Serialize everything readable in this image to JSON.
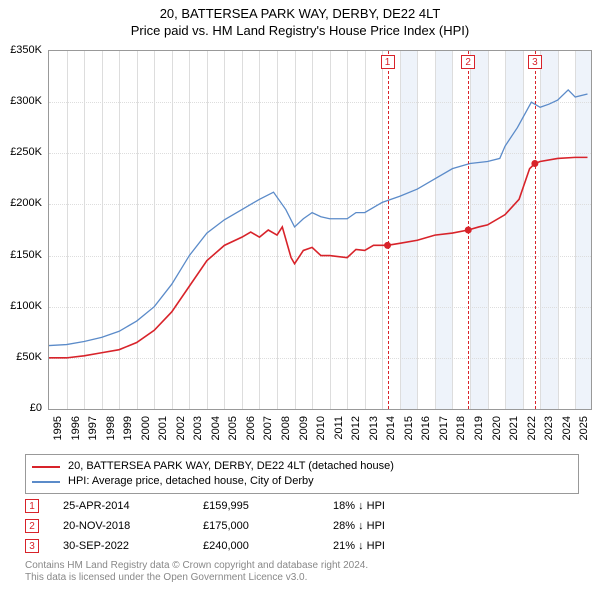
{
  "title": {
    "line1": "20, BATTERSEA PARK WAY, DERBY, DE22 4LT",
    "line2": "Price paid vs. HM Land Registry's House Price Index (HPI)",
    "fontsize": 13,
    "color": "#000000"
  },
  "chart": {
    "type": "line",
    "background_color": "#ffffff",
    "border_color": "#999999",
    "grid_color": "#dddddd",
    "x": {
      "years": [
        1995,
        1996,
        1997,
        1998,
        1999,
        2000,
        2001,
        2002,
        2003,
        2004,
        2005,
        2006,
        2007,
        2008,
        2009,
        2010,
        2011,
        2012,
        2013,
        2014,
        2015,
        2016,
        2017,
        2018,
        2019,
        2020,
        2021,
        2022,
        2023,
        2024,
        2025
      ],
      "min": 1995,
      "max": 2025.9
    },
    "y": {
      "ticks": [
        0,
        50,
        100,
        150,
        200,
        250,
        300,
        350
      ],
      "tick_labels": [
        "£0",
        "£50K",
        "£100K",
        "£150K",
        "£200K",
        "£250K",
        "£300K",
        "£350K"
      ],
      "min": 0,
      "max": 350
    },
    "shade_bands": [
      {
        "from": 2015,
        "to": 2016,
        "color": "#eef3fa"
      },
      {
        "from": 2017,
        "to": 2018,
        "color": "#eef3fa"
      },
      {
        "from": 2019,
        "to": 2020,
        "color": "#eef3fa"
      },
      {
        "from": 2021,
        "to": 2022,
        "color": "#eef3fa"
      },
      {
        "from": 2023,
        "to": 2024,
        "color": "#eef3fa"
      },
      {
        "from": 2025,
        "to": 2025.9,
        "color": "#eef3fa"
      }
    ],
    "series": [
      {
        "id": "price_paid",
        "color": "#d8232a",
        "line_width": 1.6,
        "marker_radius": 3.5,
        "points": [
          [
            1995,
            50
          ],
          [
            1996,
            50
          ],
          [
            1997,
            52
          ],
          [
            1998,
            55
          ],
          [
            1999,
            58
          ],
          [
            2000,
            65
          ],
          [
            2001,
            77
          ],
          [
            2002,
            95
          ],
          [
            2003,
            120
          ],
          [
            2004,
            145
          ],
          [
            2005,
            160
          ],
          [
            2006,
            168
          ],
          [
            2006.5,
            173
          ],
          [
            2007,
            168
          ],
          [
            2007.5,
            175
          ],
          [
            2008,
            170
          ],
          [
            2008.3,
            178
          ],
          [
            2008.8,
            148
          ],
          [
            2009,
            142
          ],
          [
            2009.5,
            155
          ],
          [
            2010,
            158
          ],
          [
            2010.5,
            150
          ],
          [
            2011,
            150
          ],
          [
            2012,
            148
          ],
          [
            2012.5,
            156
          ],
          [
            2013,
            155
          ],
          [
            2013.5,
            160
          ],
          [
            2014.3,
            160
          ]
        ],
        "points2": [
          [
            2014.3,
            160
          ],
          [
            2015,
            162
          ],
          [
            2016,
            165
          ],
          [
            2017,
            170
          ],
          [
            2018,
            172
          ],
          [
            2018.9,
            175
          ]
        ],
        "points3": [
          [
            2018.9,
            175
          ],
          [
            2019.5,
            178
          ],
          [
            2020,
            180
          ],
          [
            2021,
            190
          ],
          [
            2021.8,
            205
          ],
          [
            2022.4,
            235
          ],
          [
            2022.7,
            240
          ]
        ],
        "points4": [
          [
            2022.7,
            240
          ],
          [
            2023,
            242
          ],
          [
            2024,
            245
          ],
          [
            2025,
            246
          ],
          [
            2025.7,
            246
          ]
        ],
        "sale_markers": [
          {
            "x": 2014.3,
            "y": 160
          },
          {
            "x": 2018.9,
            "y": 175
          },
          {
            "x": 2022.7,
            "y": 240
          }
        ]
      },
      {
        "id": "hpi",
        "color": "#5b8bc9",
        "line_width": 1.3,
        "points": [
          [
            1995,
            62
          ],
          [
            1996,
            63
          ],
          [
            1997,
            66
          ],
          [
            1998,
            70
          ],
          [
            1999,
            76
          ],
          [
            2000,
            86
          ],
          [
            2001,
            100
          ],
          [
            2002,
            122
          ],
          [
            2003,
            150
          ],
          [
            2004,
            172
          ],
          [
            2005,
            185
          ],
          [
            2006,
            195
          ],
          [
            2007,
            205
          ],
          [
            2007.8,
            212
          ],
          [
            2008.5,
            195
          ],
          [
            2009,
            178
          ],
          [
            2009.5,
            186
          ],
          [
            2010,
            192
          ],
          [
            2010.5,
            188
          ],
          [
            2011,
            186
          ],
          [
            2012,
            186
          ],
          [
            2012.5,
            192
          ],
          [
            2013,
            192
          ],
          [
            2014,
            202
          ],
          [
            2015,
            208
          ],
          [
            2016,
            215
          ],
          [
            2017,
            225
          ],
          [
            2018,
            235
          ],
          [
            2019,
            240
          ],
          [
            2020,
            242
          ],
          [
            2020.7,
            245
          ],
          [
            2021,
            257
          ],
          [
            2021.7,
            275
          ],
          [
            2022.5,
            300
          ],
          [
            2023,
            295
          ],
          [
            2023.5,
            298
          ],
          [
            2024,
            302
          ],
          [
            2024.6,
            312
          ],
          [
            2025,
            305
          ],
          [
            2025.7,
            308
          ]
        ]
      }
    ],
    "event_markers": [
      {
        "n": "1",
        "x": 2014.3,
        "color": "#d8232a"
      },
      {
        "n": "2",
        "x": 2018.9,
        "color": "#d8232a"
      },
      {
        "n": "3",
        "x": 2022.7,
        "color": "#d8232a"
      }
    ]
  },
  "legend": {
    "items": [
      {
        "color": "#d8232a",
        "label": "20, BATTERSEA PARK WAY, DERBY, DE22 4LT (detached house)"
      },
      {
        "color": "#5b8bc9",
        "label": "HPI: Average price, detached house, City of Derby"
      }
    ]
  },
  "sales": [
    {
      "n": "1",
      "date": "25-APR-2014",
      "price": "£159,995",
      "diff": "18% ↓ HPI",
      "color": "#d8232a"
    },
    {
      "n": "2",
      "date": "20-NOV-2018",
      "price": "£175,000",
      "diff": "28% ↓ HPI",
      "color": "#d8232a"
    },
    {
      "n": "3",
      "date": "30-SEP-2022",
      "price": "£240,000",
      "diff": "21% ↓ HPI",
      "color": "#d8232a"
    }
  ],
  "footer": {
    "line1": "Contains HM Land Registry data © Crown copyright and database right 2024.",
    "line2": "This data is licensed under the Open Government Licence v3.0.",
    "color": "#888888"
  }
}
